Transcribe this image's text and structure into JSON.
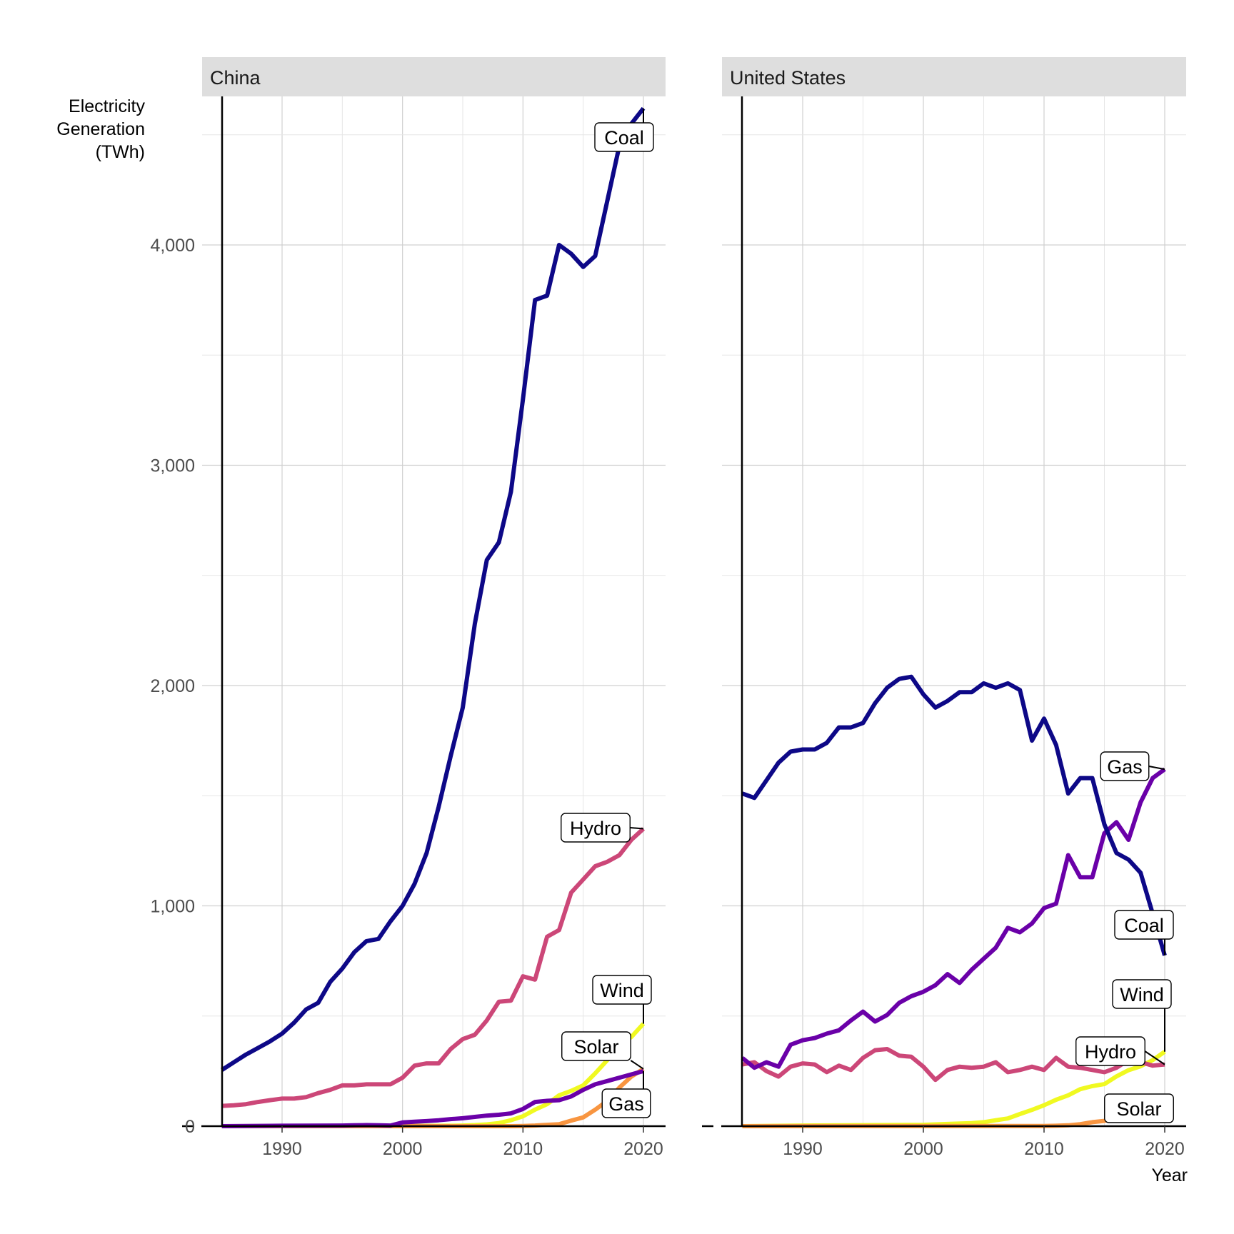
{
  "chart_data": {
    "type": "line",
    "ylabel": [
      "Electricity",
      "Generation",
      "(TWh)"
    ],
    "xlabel": "Year",
    "xlim": [
      1985,
      2021
    ],
    "ylim": [
      0,
      4650
    ],
    "x_ticks": [
      1990,
      2000,
      2010,
      2020
    ],
    "y_ticks": [
      0,
      1000,
      2000,
      3000,
      4000
    ],
    "y_tick_labels": [
      "0",
      "1,000",
      "2,000",
      "3,000",
      "4,000"
    ],
    "grid": true,
    "legend": "none (direct labels)",
    "colors": {
      "Coal": "#0d0887",
      "Gas": "#6a00a8",
      "Hydro": "#cc4778",
      "Solar": "#f89540",
      "Wind": "#f0f921"
    },
    "panels": [
      {
        "name": "China",
        "series": [
          {
            "name": "Coal",
            "x": [
              1985,
              1986,
              1987,
              1988,
              1989,
              1990,
              1991,
              1992,
              1993,
              1994,
              1995,
              1996,
              1997,
              1998,
              1999,
              2000,
              2001,
              2002,
              2003,
              2004,
              2005,
              2006,
              2007,
              2008,
              2009,
              2010,
              2011,
              2012,
              2013,
              2014,
              2015,
              2016,
              2017,
              2018,
              2019,
              2020
            ],
            "values": [
              255,
              290,
              325,
              355,
              385,
              420,
              470,
              530,
              560,
              655,
              715,
              790,
              840,
              850,
              930,
              1000,
              1100,
              1240,
              1450,
              1680,
              1900,
              2280,
              2570,
              2650,
              2880,
              3300,
              3750,
              3770,
              4000,
              3960,
              3900,
              3950,
              4200,
              4450,
              4550,
              4620
            ]
          },
          {
            "name": "Gas",
            "x": [
              1985,
              1990,
              1995,
              1996,
              1997,
              1998,
              1999,
              2000,
              2001,
              2002,
              2003,
              2004,
              2005,
              2006,
              2007,
              2008,
              2009,
              2010,
              2011,
              2012,
              2013,
              2014,
              2015,
              2016,
              2017,
              2018,
              2019,
              2020
            ],
            "values": [
              0,
              2,
              3,
              4,
              5,
              4,
              3,
              17,
              20,
              23,
              27,
              32,
              36,
              42,
              48,
              52,
              58,
              78,
              110,
              115,
              118,
              135,
              165,
              190,
              205,
              220,
              235,
              250
            ]
          },
          {
            "name": "Hydro",
            "x": [
              1985,
              1986,
              1987,
              1988,
              1989,
              1990,
              1991,
              1992,
              1993,
              1994,
              1995,
              1996,
              1997,
              1998,
              1999,
              2000,
              2001,
              2002,
              2003,
              2004,
              2005,
              2006,
              2007,
              2008,
              2009,
              2010,
              2011,
              2012,
              2013,
              2014,
              2015,
              2016,
              2017,
              2018,
              2019,
              2020
            ],
            "values": [
              92,
              95,
              100,
              110,
              118,
              125,
              125,
              132,
              150,
              165,
              185,
              185,
              190,
              190,
              190,
              220,
              275,
              285,
              285,
              350,
              395,
              415,
              480,
              565,
              570,
              680,
              665,
              860,
              890,
              1060,
              1120,
              1180,
              1200,
              1230,
              1300,
              1350
            ]
          },
          {
            "name": "Solar",
            "x": [
              1985,
              2008,
              2009,
              2010,
              2011,
              2012,
              2013,
              2014,
              2015,
              2016,
              2017,
              2018,
              2019,
              2020
            ],
            "values": [
              0,
              0,
              0,
              1,
              3,
              6,
              9,
              25,
              40,
              75,
              115,
              175,
              225,
              260
            ]
          },
          {
            "name": "Wind",
            "x": [
              1985,
              2000,
              2004,
              2005,
              2006,
              2007,
              2008,
              2009,
              2010,
              2011,
              2012,
              2013,
              2014,
              2015,
              2016,
              2017,
              2018,
              2019,
              2020
            ],
            "values": [
              0,
              1,
              2,
              3,
              5,
              8,
              14,
              27,
              45,
              75,
              100,
              140,
              160,
              185,
              240,
              300,
              365,
              405,
              465
            ]
          }
        ],
        "labels": [
          {
            "text": "Coal",
            "series": "Coal"
          },
          {
            "text": "Hydro",
            "series": "Hydro"
          },
          {
            "text": "Wind",
            "series": "Wind"
          },
          {
            "text": "Solar",
            "series": "Solar"
          },
          {
            "text": "Gas",
            "series": "Gas"
          }
        ]
      },
      {
        "name": "United States",
        "series": [
          {
            "name": "Coal",
            "x": [
              1985,
              1986,
              1987,
              1988,
              1989,
              1990,
              1991,
              1992,
              1993,
              1994,
              1995,
              1996,
              1997,
              1998,
              1999,
              2000,
              2001,
              2002,
              2003,
              2004,
              2005,
              2006,
              2007,
              2008,
              2009,
              2010,
              2011,
              2012,
              2013,
              2014,
              2015,
              2016,
              2017,
              2018,
              2019,
              2020
            ],
            "values": [
              1510,
              1490,
              1570,
              1650,
              1700,
              1710,
              1710,
              1740,
              1810,
              1810,
              1830,
              1920,
              1990,
              2030,
              2040,
              1960,
              1900,
              1930,
              1970,
              1970,
              2010,
              1990,
              2010,
              1980,
              1750,
              1850,
              1730,
              1510,
              1580,
              1580,
              1370,
              1240,
              1210,
              1150,
              965,
              775
            ]
          },
          {
            "name": "Gas",
            "x": [
              1985,
              1986,
              1987,
              1988,
              1989,
              1990,
              1991,
              1992,
              1993,
              1994,
              1995,
              1996,
              1997,
              1998,
              1999,
              2000,
              2001,
              2002,
              2003,
              2004,
              2005,
              2006,
              2007,
              2008,
              2009,
              2010,
              2011,
              2012,
              2013,
              2014,
              2015,
              2016,
              2017,
              2018,
              2019,
              2020
            ],
            "values": [
              310,
              265,
              290,
              270,
              370,
              390,
              400,
              420,
              435,
              480,
              520,
              475,
              505,
              560,
              590,
              610,
              640,
              690,
              650,
              710,
              760,
              810,
              900,
              880,
              920,
              990,
              1010,
              1230,
              1130,
              1130,
              1330,
              1380,
              1300,
              1470,
              1580,
              1620
            ]
          },
          {
            "name": "Hydro",
            "x": [
              1985,
              1986,
              1987,
              1988,
              1989,
              1990,
              1991,
              1992,
              1993,
              1994,
              1995,
              1996,
              1997,
              1998,
              1999,
              2000,
              2001,
              2002,
              2003,
              2004,
              2005,
              2006,
              2007,
              2008,
              2009,
              2010,
              2011,
              2012,
              2013,
              2014,
              2015,
              2016,
              2017,
              2018,
              2019,
              2020
            ],
            "values": [
              280,
              290,
              250,
              225,
              270,
              285,
              280,
              245,
              275,
              255,
              310,
              345,
              350,
              320,
              315,
              270,
              210,
              255,
              270,
              265,
              270,
              290,
              245,
              255,
              270,
              255,
              310,
              270,
              265,
              255,
              245,
              265,
              300,
              290,
              275,
              280
            ]
          },
          {
            "name": "Solar",
            "x": [
              1985,
              2010,
              2011,
              2012,
              2013,
              2014,
              2015,
              2016,
              2017,
              2018,
              2019,
              2020
            ],
            "values": [
              0,
              1,
              2,
              4,
              9,
              18,
              24,
              36,
              53,
              64,
              72,
              90
            ]
          },
          {
            "name": "Wind",
            "x": [
              1985,
              1990,
              2000,
              2002,
              2004,
              2005,
              2006,
              2007,
              2008,
              2009,
              2010,
              2011,
              2012,
              2013,
              2014,
              2015,
              2016,
              2017,
              2018,
              2019,
              2020
            ],
            "values": [
              0,
              3,
              6,
              10,
              14,
              18,
              27,
              35,
              55,
              74,
              95,
              120,
              140,
              168,
              182,
              191,
              226,
              254,
              272,
              300,
              338
            ]
          }
        ],
        "labels": [
          {
            "text": "Gas",
            "series": "Gas"
          },
          {
            "text": "Coal",
            "series": "Coal"
          },
          {
            "text": "Wind",
            "series": "Wind"
          },
          {
            "text": "Hydro",
            "series": "Hydro"
          },
          {
            "text": "Solar",
            "series": "Solar"
          }
        ]
      }
    ]
  }
}
